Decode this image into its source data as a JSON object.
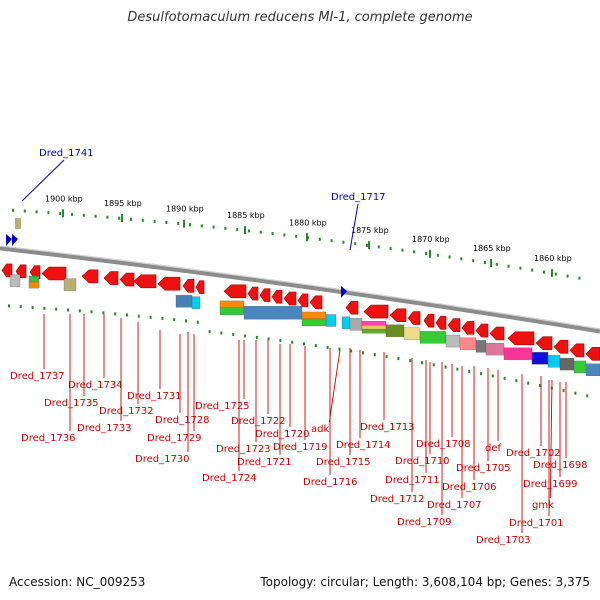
{
  "title": "Desulfotomaculum reducens MI-1, complete genome",
  "footer": {
    "accession": "Accession: NC_009253",
    "topology": "Topology: circular; Length: 3,608,104 bp; Genes: 3,375"
  },
  "scale_ticks": [
    "1900 kbp",
    "1895 kbp",
    "1890 kbp",
    "1885 kbp",
    "1880 kbp",
    "1875 kbp",
    "1870 kbp",
    "1865 kbp",
    "1860 kbp"
  ],
  "callouts": [
    "Dred_1741",
    "Dred_1717"
  ],
  "gene_labels": [
    "Dred_1737",
    "Dred_1736",
    "Dred_1735",
    "Dred_1734",
    "Dred_1733",
    "Dred_1732",
    "Dred_1731",
    "Dred_1730",
    "Dred_1729",
    "Dred_1728",
    "Dred_1725",
    "Dred_1724",
    "Dred_1723",
    "Dred_1722",
    "Dred_1721",
    "Dred_1720",
    "Dred_1719",
    "adk",
    "Dred_1716",
    "Dred_1715",
    "Dred_1714",
    "Dred_1713",
    "Dred_1712",
    "Dred_1711",
    "Dred_1710",
    "Dred_1709",
    "Dred_1708",
    "Dred_1707",
    "Dred_1706",
    "Dred_1705",
    "def",
    "Dred_1703",
    "Dred_1702",
    "Dred_1701",
    "gmk",
    "Dred_1699",
    "Dred_1698"
  ],
  "colors": {
    "gene_red": "#ee1111",
    "label_red": "#cc0000",
    "callout_blue": "#0000cc",
    "scale_green": "#228b22",
    "backbone_gray": "#8c8c8c"
  }
}
